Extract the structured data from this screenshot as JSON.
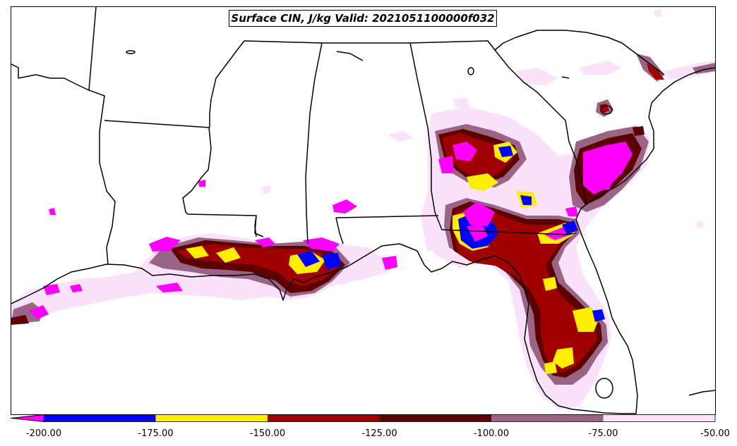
{
  "title": "Surface CIN, J/kg Valid: 2021051100000f032",
  "legend": {
    "extend": "min",
    "extend_color": "#ff00ff",
    "ticks": [
      "-200.00",
      "-175.00",
      "-150.00",
      "-125.00",
      "-100.00",
      "-75.00",
      "-50.00"
    ],
    "bins": [
      {
        "from": -200,
        "to": -175,
        "color": "#0000ff"
      },
      {
        "from": -175,
        "to": -150,
        "color": "#ffee00"
      },
      {
        "from": -150,
        "to": -125,
        "color": "#a00000"
      },
      {
        "from": -125,
        "to": -100,
        "color": "#5c0000"
      },
      {
        "from": -100,
        "to": -75,
        "color": "#9a6585"
      },
      {
        "from": -75,
        "to": -50,
        "color": "#fbe2fb"
      }
    ]
  },
  "colors": {
    "cin_lt_-200": "#ff00ff",
    "cin_-200_-175": "#0000ff",
    "cin_-175_-150": "#ffee00",
    "cin_-150_-125": "#a00000",
    "cin_-125_-100": "#5c0000",
    "cin_-100_-75": "#9a6585",
    "cin_-75_-50": "#fbe2fb",
    "boundaries": "#000000",
    "background": "#ffffff"
  }
}
